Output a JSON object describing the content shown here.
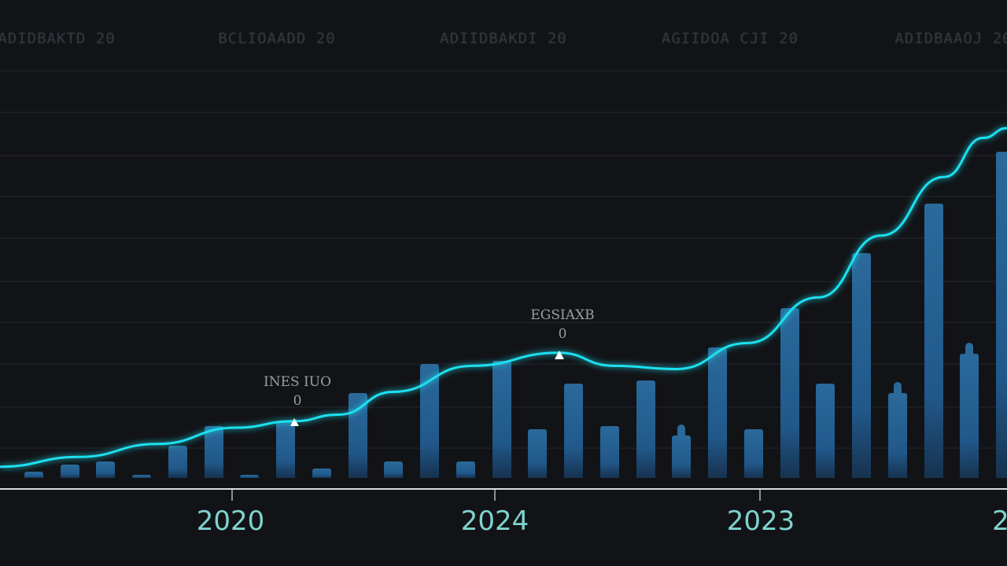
{
  "chart_data": {
    "type": "bar+line",
    "title": "",
    "top_labels": [
      "ADIDBAKTD 20",
      "BCLIOAADD 20",
      "ADIIDBAKDI 20",
      "AGIIDOA CJI 20",
      "ADIDBAAOJ 20"
    ],
    "x_tick_labels": [
      "2020",
      "2024",
      "2023",
      "2"
    ],
    "xlabel": "",
    "ylabel": "",
    "grid": true,
    "annotations": [
      {
        "label": "INES IUO",
        "value": "0",
        "x": 374
      },
      {
        "label": "EGSIAXB",
        "value": "0",
        "x": 711
      }
    ],
    "series": [
      {
        "name": "bars",
        "type": "bar",
        "values": [
          2,
          4,
          5,
          0.5,
          10,
          16,
          1,
          17,
          3,
          26,
          5,
          35,
          5,
          36,
          15,
          29,
          16,
          30,
          13,
          40,
          15,
          52,
          29,
          69,
          26,
          84,
          38,
          100
        ]
      },
      {
        "name": "trend",
        "type": "line",
        "values": [
          2,
          5,
          9,
          14,
          16,
          18,
          25,
          33,
          37,
          33,
          32,
          40,
          54,
          73,
          91,
          103,
          106
        ]
      }
    ],
    "ylim": [
      0,
      110
    ]
  },
  "colors": {
    "background": "#121317",
    "bar": "#2a6a9a",
    "line": "#1ee0f0",
    "x_label": "#7fd3cf",
    "axis": "#d9dbe0"
  }
}
